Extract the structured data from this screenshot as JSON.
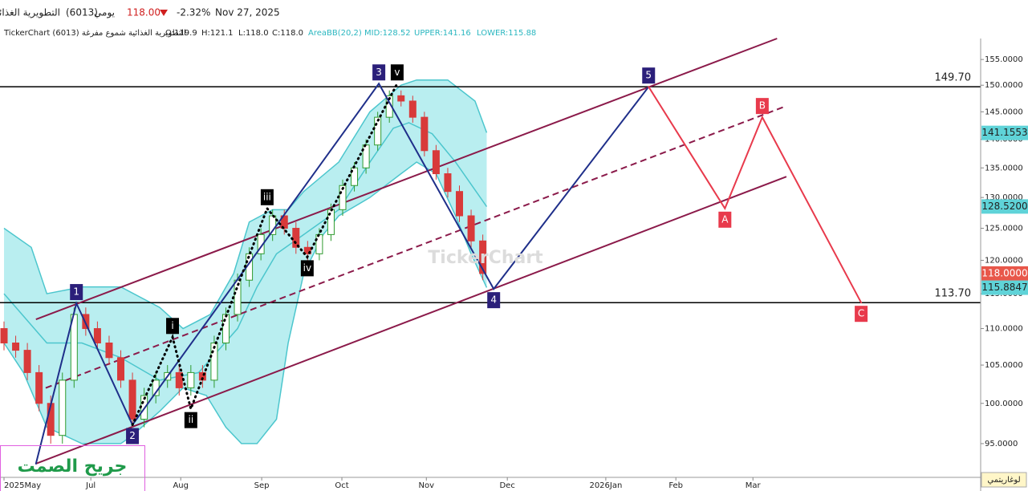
{
  "header": {
    "name": "التطويرية الغذائية",
    "code": "(6013)",
    "period": "يومي",
    "price": "118.00",
    "change": "-2.32%",
    "date": "Nov 27, 2025",
    "info": "TickerChart (6013) التطويرية الغذائية  شموع مفرغة",
    "open": "O:119.9",
    "high": "H:121.1",
    "low": "L:118.0",
    "close": "C:118.0",
    "indicator": "AreaBB(20,2)",
    "mid": "MID:128.52",
    "upper": "UPPER:141.16",
    "lower": "LOWER:115.88",
    "watermark": "TickerChart",
    "signature": "جريح الصمت",
    "scale_button": "لوغاريتمي"
  },
  "chart_data": {
    "type": "candlestick",
    "log_scale": true,
    "up_color": "#2f9a2f",
    "down_color": "#d83a3a",
    "x": [
      0,
      3,
      6,
      9,
      12,
      15,
      18,
      21,
      24,
      27,
      30,
      33,
      36,
      39,
      42,
      45,
      48,
      51,
      54,
      57,
      60,
      63,
      66,
      69,
      72,
      75,
      78,
      81,
      84,
      87,
      90,
      93,
      96,
      99,
      102,
      105,
      108,
      111,
      114,
      117,
      120,
      123
    ],
    "open": [
      110,
      108,
      107,
      104,
      100,
      96,
      103,
      112,
      110,
      108,
      106,
      103,
      98,
      101,
      103,
      104,
      102,
      104,
      103,
      108,
      112,
      117,
      121,
      124,
      127,
      125,
      122,
      121,
      124,
      128,
      132,
      135,
      139,
      144,
      148,
      147,
      144,
      138,
      134,
      131,
      127,
      123
    ],
    "high": [
      111,
      109,
      108,
      105,
      101,
      104,
      113,
      113,
      111,
      109,
      107,
      104,
      102,
      104,
      105,
      105,
      105,
      105,
      109,
      113,
      118,
      122,
      125,
      128,
      128,
      126,
      123,
      125,
      129,
      133,
      136,
      140,
      145,
      149,
      149,
      148,
      145,
      139,
      135,
      132,
      128,
      124
    ],
    "low": [
      107,
      106,
      103,
      99,
      95,
      95,
      102,
      109,
      107,
      105,
      102,
      97,
      97,
      100,
      102,
      101,
      101,
      102,
      102,
      107,
      111,
      116,
      120,
      123,
      124,
      121,
      120,
      120,
      123,
      127,
      131,
      134,
      138,
      143,
      146,
      143,
      137,
      133,
      130,
      126,
      122,
      117
    ],
    "close": [
      108,
      107,
      104,
      100,
      96,
      103,
      112,
      110,
      108,
      106,
      103,
      98,
      101,
      103,
      104,
      102,
      104,
      103,
      108,
      112,
      117,
      121,
      124,
      127,
      125,
      122,
      121,
      124,
      128,
      132,
      135,
      139,
      144,
      148,
      147,
      144,
      138,
      134,
      131,
      127,
      123,
      118
    ],
    "xlim": [
      0,
      250.9
    ],
    "xticks": [
      {
        "value": 0,
        "label": "2025May"
      },
      {
        "value": 22.3,
        "label": "Jul"
      },
      {
        "value": 45.4,
        "label": "Aug"
      },
      {
        "value": 66.2,
        "label": "Sep"
      },
      {
        "value": 86.8,
        "label": "Oct"
      },
      {
        "value": 108.5,
        "label": "Nov"
      },
      {
        "value": 129.3,
        "label": "Dec"
      },
      {
        "value": 154.6,
        "label": "2026Jan"
      },
      {
        "value": 172.6,
        "label": "Feb"
      },
      {
        "value": 192.4,
        "label": "Mar"
      }
    ],
    "ylim": [
      91,
      159.2
    ],
    "yticks": [
      {
        "value": 95,
        "label": "95.0000"
      },
      {
        "value": 100,
        "label": "100.0000"
      },
      {
        "value": 105,
        "label": "105.0000"
      },
      {
        "value": 110,
        "label": "110.0000"
      },
      {
        "value": 115,
        "label": "115.0000"
      },
      {
        "value": 120,
        "label": "120.0000"
      },
      {
        "value": 125,
        "label": "125.0000"
      },
      {
        "value": 130,
        "label": "130.0000"
      },
      {
        "value": 135,
        "label": "135.0000"
      },
      {
        "value": 140,
        "label": "140.0000"
      },
      {
        "value": 145,
        "label": "145.0000"
      },
      {
        "value": 150,
        "label": "150.0000"
      },
      {
        "value": 155,
        "label": "155.0000"
      }
    ],
    "bands": {
      "fill": "#b9eef0",
      "color": "#4cc6cd",
      "upper": {
        "x": [
          0,
          7,
          11,
          20,
          30,
          40,
          46,
          53,
          59,
          63,
          69,
          73,
          77,
          86,
          94,
          102,
          106,
          114,
          121,
          124
        ],
        "values": [
          125,
          122,
          115,
          116,
          116,
          113,
          110,
          112,
          118,
          126,
          128,
          128,
          131,
          136,
          145,
          150,
          151,
          151,
          147,
          141.2
        ]
      },
      "mid": {
        "x": [
          0,
          11,
          20,
          30,
          40,
          50,
          60,
          65,
          70,
          77,
          86,
          94,
          100,
          104,
          110,
          116,
          124
        ],
        "values": [
          115,
          108,
          108,
          106,
          103,
          104,
          110,
          116,
          121,
          124,
          128,
          136,
          142,
          143,
          141,
          136,
          128.5
        ]
      },
      "lower": {
        "x": [
          0,
          5,
          11,
          20,
          30,
          33,
          40,
          46,
          52,
          57,
          61,
          65,
          70,
          73,
          77,
          82,
          86,
          94,
          102,
          106,
          111,
          116,
          120,
          124
        ],
        "values": [
          108,
          104,
          97,
          95,
          95,
          96,
          99,
          102,
          101,
          97,
          95,
          95,
          98,
          108,
          118,
          124,
          127,
          130,
          134,
          136,
          134,
          127,
          121,
          115.9
        ]
      }
    },
    "channel": {
      "color": "#8b1a4a",
      "upper": {
        "x": [
          8.2,
          198.6
        ],
        "values": [
          111.3,
          159.2
        ]
      },
      "mid": {
        "x": [
          8.2,
          201
        ],
        "values": [
          101.5,
          146.1
        ]
      },
      "lower": {
        "x": [
          8.2,
          201
        ],
        "values": [
          92.6,
          133.5
        ]
      }
    },
    "levels": [
      {
        "value": 149.7,
        "label": "149.70"
      },
      {
        "value": 113.7,
        "label": "113.70"
      }
    ],
    "price_labels": [
      {
        "value": 141.1553,
        "label": "141.1553",
        "color": "#5fd3d8"
      },
      {
        "value": 128.52,
        "label": "128.5200",
        "color": "#5fd3d8"
      },
      {
        "value": 118,
        "label": "118.0000",
        "color": "#e8574a"
      },
      {
        "value": 115.8847,
        "label": "115.8847",
        "color": "#5fd3d8"
      }
    ],
    "waves": [
      {
        "color": "#1f2f8a",
        "box": "#2b1f7a",
        "style": "solid",
        "x": [
          8.2,
          18.6,
          33,
          96.3,
          125.8,
          165.6
        ],
        "values": [
          92.6,
          113.6,
          97.3,
          150.3,
          115.7,
          149.7
        ],
        "labels": [
          "1",
          "2",
          "3",
          "4",
          "5"
        ]
      },
      {
        "color": "#000000",
        "box": "#000000",
        "style": "dotted",
        "x": [
          33,
          43.3,
          48,
          67.6,
          77.9,
          101
        ],
        "values": [
          97.3,
          108.8,
          99.3,
          128.2,
          120.5,
          150.3
        ],
        "labels": [
          "i",
          "ii",
          "iii",
          "iv",
          "v"
        ]
      },
      {
        "color": "#e83a4c",
        "box": "#e83a4c",
        "style": "solid",
        "x": [
          165.6,
          185.2,
          194.8,
          220.2
        ],
        "values": [
          149.7,
          128.2,
          144,
          113.7
        ],
        "labels": [
          "A",
          "B",
          "C"
        ]
      }
    ]
  }
}
